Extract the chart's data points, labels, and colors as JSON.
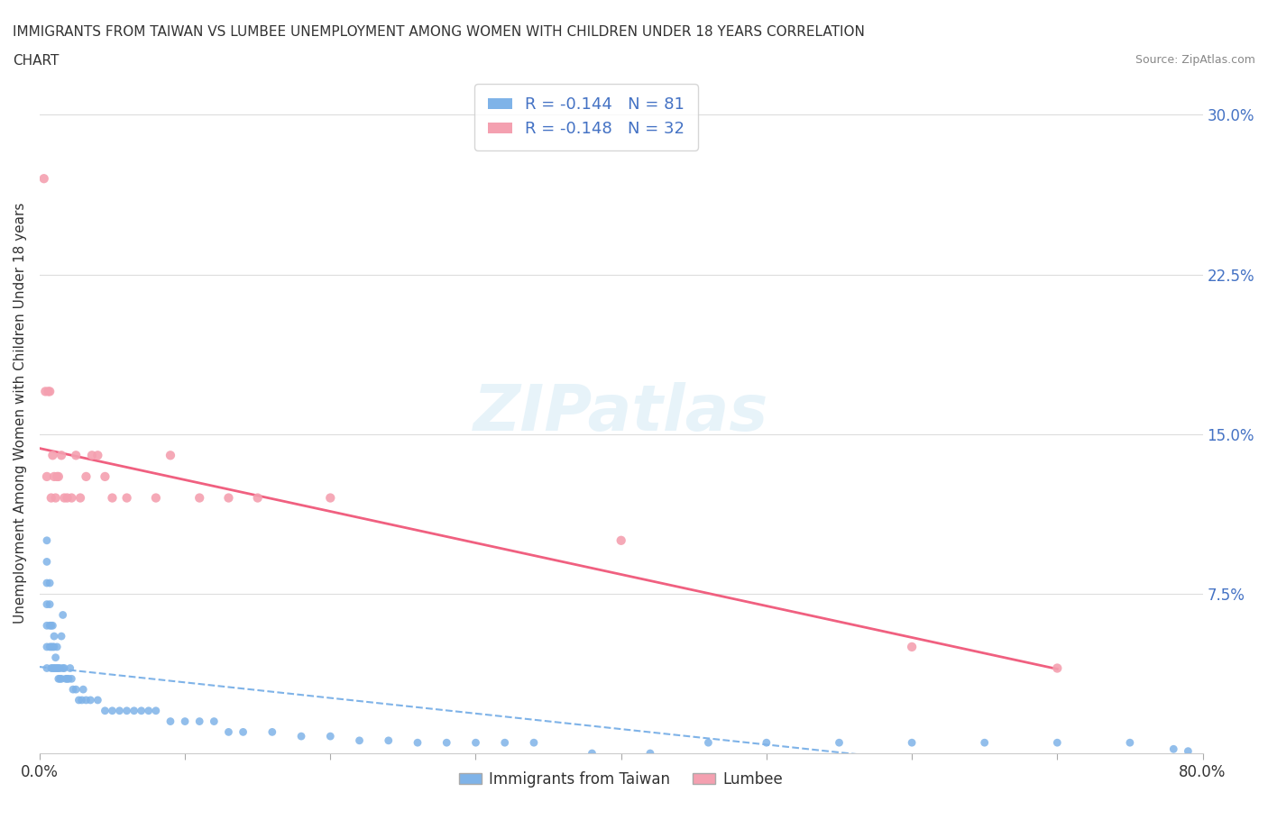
{
  "title_line1": "IMMIGRANTS FROM TAIWAN VS LUMBEE UNEMPLOYMENT AMONG WOMEN WITH CHILDREN UNDER 18 YEARS CORRELATION",
  "title_line2": "CHART",
  "source_text": "Source: ZipAtlas.com",
  "xlabel": "",
  "ylabel": "Unemployment Among Women with Children Under 18 years",
  "xlim": [
    0.0,
    0.8
  ],
  "ylim": [
    0.0,
    0.32
  ],
  "xticks": [
    0.0,
    0.1,
    0.2,
    0.3,
    0.4,
    0.5,
    0.6,
    0.7,
    0.8
  ],
  "xticklabels": [
    "0.0%",
    "",
    "",
    "",
    "",
    "",
    "",
    "",
    "80.0%"
  ],
  "ytick_positions": [
    0.0,
    0.075,
    0.15,
    0.225,
    0.3
  ],
  "ytick_labels": [
    "",
    "7.5%",
    "15.0%",
    "22.5%",
    "30.0%"
  ],
  "taiwan_color": "#7fb3e8",
  "lumbee_color": "#f4a0b0",
  "taiwan_R": -0.144,
  "taiwan_N": 81,
  "lumbee_R": -0.148,
  "lumbee_N": 32,
  "legend_label_taiwan": "R = -0.144   N = 81",
  "legend_label_lumbee": "R = -0.148   N = 32",
  "legend_label_taiwan_scatter": "Immigrants from Taiwan",
  "legend_label_lumbee_scatter": "Lumbee",
  "watermark": "ZIPatlas",
  "grid_color": "#dddddd",
  "taiwan_scatter_x": [
    0.005,
    0.005,
    0.005,
    0.005,
    0.005,
    0.005,
    0.005,
    0.007,
    0.007,
    0.007,
    0.007,
    0.008,
    0.008,
    0.008,
    0.009,
    0.009,
    0.009,
    0.01,
    0.01,
    0.01,
    0.011,
    0.011,
    0.012,
    0.012,
    0.013,
    0.013,
    0.014,
    0.014,
    0.015,
    0.015,
    0.016,
    0.016,
    0.017,
    0.018,
    0.019,
    0.02,
    0.021,
    0.022,
    0.023,
    0.025,
    0.027,
    0.029,
    0.03,
    0.032,
    0.035,
    0.04,
    0.045,
    0.05,
    0.055,
    0.06,
    0.065,
    0.07,
    0.075,
    0.08,
    0.09,
    0.1,
    0.11,
    0.12,
    0.13,
    0.14,
    0.16,
    0.18,
    0.2,
    0.22,
    0.24,
    0.26,
    0.28,
    0.3,
    0.32,
    0.34,
    0.38,
    0.42,
    0.46,
    0.5,
    0.55,
    0.6,
    0.65,
    0.7,
    0.75,
    0.78,
    0.79
  ],
  "taiwan_scatter_y": [
    0.05,
    0.06,
    0.07,
    0.08,
    0.09,
    0.1,
    0.04,
    0.05,
    0.06,
    0.07,
    0.08,
    0.04,
    0.05,
    0.06,
    0.04,
    0.05,
    0.06,
    0.04,
    0.05,
    0.055,
    0.04,
    0.045,
    0.04,
    0.05,
    0.035,
    0.04,
    0.035,
    0.04,
    0.035,
    0.055,
    0.04,
    0.065,
    0.04,
    0.035,
    0.035,
    0.035,
    0.04,
    0.035,
    0.03,
    0.03,
    0.025,
    0.025,
    0.03,
    0.025,
    0.025,
    0.025,
    0.02,
    0.02,
    0.02,
    0.02,
    0.02,
    0.02,
    0.02,
    0.02,
    0.015,
    0.015,
    0.015,
    0.015,
    0.01,
    0.01,
    0.01,
    0.008,
    0.008,
    0.006,
    0.006,
    0.005,
    0.005,
    0.005,
    0.005,
    0.005,
    0.0,
    0.0,
    0.005,
    0.005,
    0.005,
    0.005,
    0.005,
    0.005,
    0.005,
    0.002,
    0.001
  ],
  "lumbee_scatter_x": [
    0.003,
    0.004,
    0.005,
    0.006,
    0.007,
    0.008,
    0.009,
    0.01,
    0.011,
    0.012,
    0.013,
    0.015,
    0.017,
    0.019,
    0.022,
    0.025,
    0.028,
    0.032,
    0.036,
    0.04,
    0.045,
    0.05,
    0.06,
    0.08,
    0.09,
    0.11,
    0.13,
    0.15,
    0.2,
    0.4,
    0.6,
    0.7
  ],
  "lumbee_scatter_y": [
    0.27,
    0.17,
    0.13,
    0.17,
    0.17,
    0.12,
    0.14,
    0.13,
    0.12,
    0.13,
    0.13,
    0.14,
    0.12,
    0.12,
    0.12,
    0.14,
    0.12,
    0.13,
    0.14,
    0.14,
    0.13,
    0.12,
    0.12,
    0.12,
    0.14,
    0.12,
    0.12,
    0.12,
    0.12,
    0.1,
    0.05,
    0.04
  ]
}
